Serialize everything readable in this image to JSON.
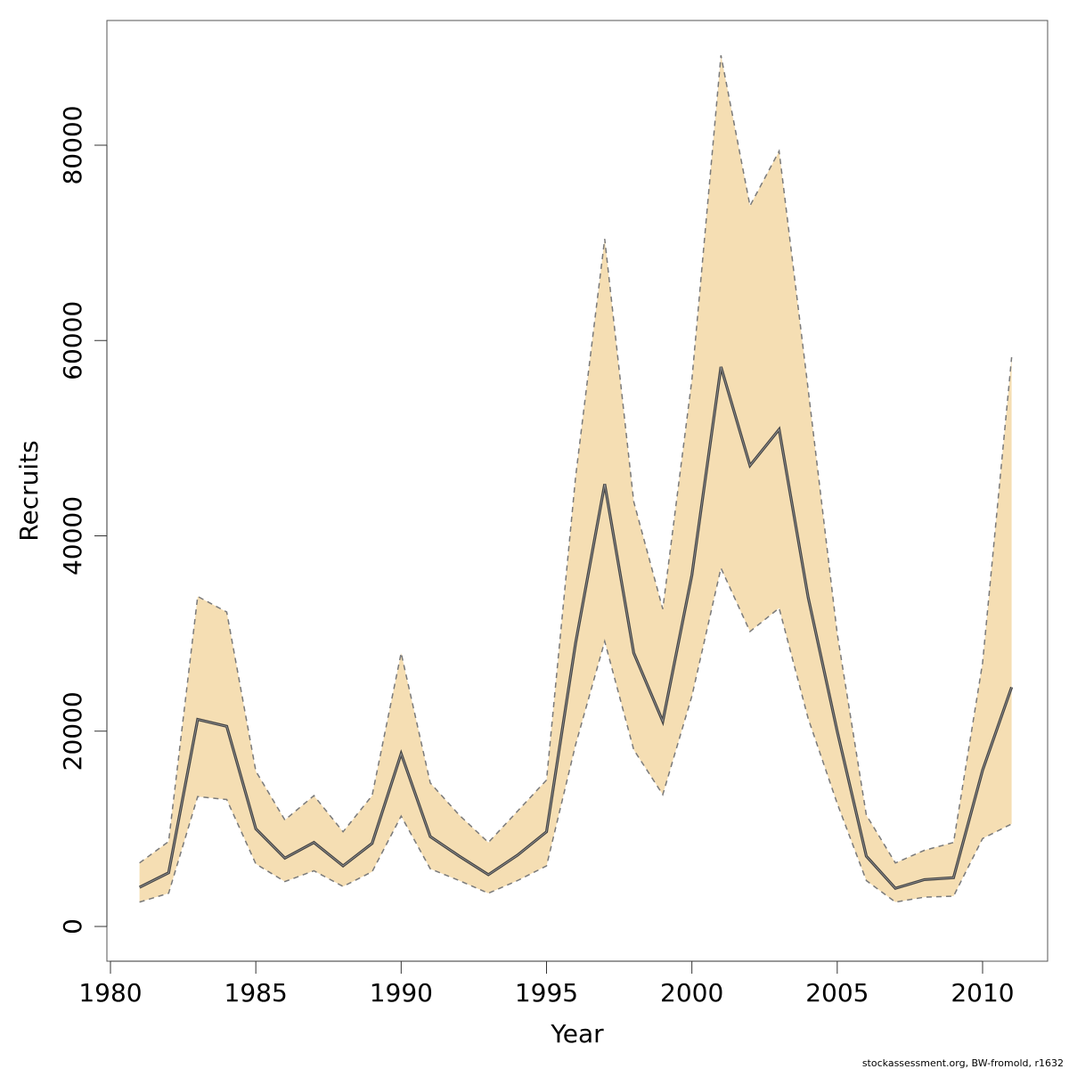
{
  "chart_data": {
    "type": "area",
    "xlabel": "Year",
    "ylabel": "Recruits",
    "xlim": [
      1980,
      2012
    ],
    "ylim": [
      -3000,
      91000
    ],
    "x_ticks": [
      1980,
      1985,
      1990,
      1995,
      2000,
      2005,
      2010
    ],
    "y_ticks": [
      0,
      20000,
      40000,
      60000,
      80000
    ],
    "grid": false,
    "legend": "none",
    "x": [
      1981,
      1982,
      1983,
      1984,
      1985,
      1986,
      1987,
      1988,
      1989,
      1990,
      1991,
      1992,
      1993,
      1994,
      1995,
      1996,
      1997,
      1998,
      1999,
      2000,
      2001,
      2002,
      2003,
      2004,
      2005,
      2006,
      2007,
      2008,
      2009,
      2010,
      2011
    ],
    "series": [
      {
        "role": "estimate",
        "values": [
          4000,
          5500,
          21200,
          20500,
          10000,
          7000,
          8600,
          6200,
          8500,
          17700,
          9200,
          7200,
          5300,
          7300,
          9700,
          29000,
          45300,
          28000,
          21000,
          36000,
          57300,
          47200,
          50900,
          33700,
          20000,
          7200,
          3900,
          4800,
          5000,
          16000,
          24500
        ]
      },
      {
        "role": "upper",
        "values": [
          6500,
          8700,
          33800,
          32200,
          15900,
          10900,
          13400,
          9700,
          13400,
          28000,
          14700,
          11400,
          8600,
          11800,
          15000,
          46000,
          70400,
          43500,
          32500,
          56000,
          89200,
          73800,
          79400,
          55000,
          30000,
          11400,
          6500,
          7800,
          8600,
          27000,
          58300
        ]
      },
      {
        "role": "lower",
        "values": [
          2500,
          3400,
          13300,
          13000,
          6400,
          4600,
          5700,
          4100,
          5600,
          11300,
          5900,
          4700,
          3400,
          4700,
          6200,
          18600,
          29200,
          18100,
          13500,
          23600,
          36700,
          30200,
          32600,
          21300,
          12600,
          4700,
          2500,
          3000,
          3100,
          9000,
          10500
        ]
      }
    ],
    "colors": {
      "band_fill": "#F5DEB3",
      "band_edge": "#7a7a7a",
      "line": "#444444",
      "axis": "#555555"
    }
  },
  "footnote": "stockassessment.org, BW-fromold, r1632"
}
